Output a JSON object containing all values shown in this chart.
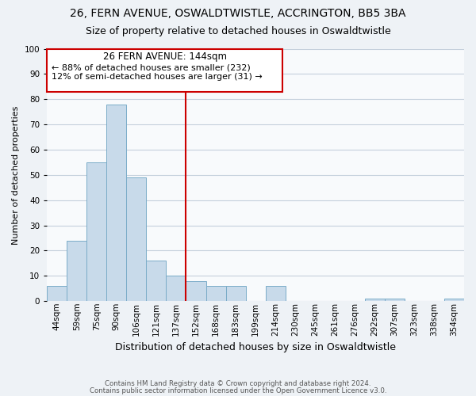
{
  "title": "26, FERN AVENUE, OSWALDTWISTLE, ACCRINGTON, BB5 3BA",
  "subtitle": "Size of property relative to detached houses in Oswaldtwistle",
  "xlabel": "Distribution of detached houses by size in Oswaldtwistle",
  "ylabel": "Number of detached properties",
  "bin_labels": [
    "44sqm",
    "59sqm",
    "75sqm",
    "90sqm",
    "106sqm",
    "121sqm",
    "137sqm",
    "152sqm",
    "168sqm",
    "183sqm",
    "199sqm",
    "214sqm",
    "230sqm",
    "245sqm",
    "261sqm",
    "276sqm",
    "292sqm",
    "307sqm",
    "323sqm",
    "338sqm",
    "354sqm"
  ],
  "bar_values": [
    6,
    24,
    55,
    78,
    49,
    16,
    10,
    8,
    6,
    6,
    0,
    6,
    0,
    0,
    0,
    0,
    1,
    1,
    0,
    0,
    1
  ],
  "bar_color": "#c8daea",
  "bar_edge_color": "#7aacc8",
  "vline_x_index": 7,
  "vline_color": "#cc0000",
  "ylim": [
    0,
    100
  ],
  "yticks": [
    0,
    10,
    20,
    30,
    40,
    50,
    60,
    70,
    80,
    90,
    100
  ],
  "annotation_title": "26 FERN AVENUE: 144sqm",
  "annotation_line1": "← 88% of detached houses are smaller (232)",
  "annotation_line2": "12% of semi-detached houses are larger (31) →",
  "footer_line1": "Contains HM Land Registry data © Crown copyright and database right 2024.",
  "footer_line2": "Contains public sector information licensed under the Open Government Licence v3.0.",
  "bg_color": "#eef2f6",
  "plot_bg_color": "#f8fafc",
  "grid_color": "#c5d0dc",
  "title_fontsize": 10,
  "subtitle_fontsize": 9,
  "ylabel_fontsize": 8,
  "xlabel_fontsize": 9,
  "tick_fontsize": 7.5,
  "footer_fontsize": 6.2
}
